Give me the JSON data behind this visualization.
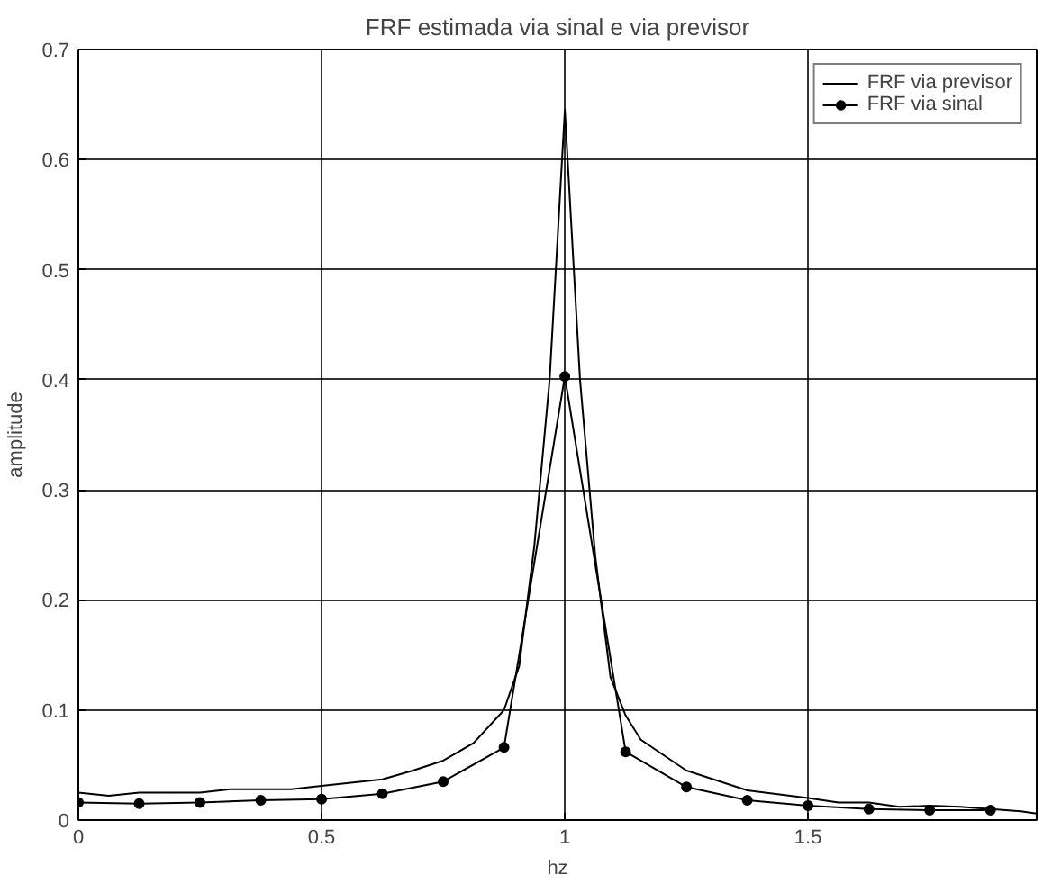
{
  "chart_data": {
    "type": "line",
    "title": "FRF estimada via sinal e via previsor",
    "xlabel": "hz",
    "ylabel": "amplitude",
    "xlim": [
      0,
      1.97
    ],
    "ylim": [
      0,
      0.7
    ],
    "xticks": [
      0,
      0.5,
      1,
      1.5
    ],
    "yticks": [
      0,
      0.1,
      0.2,
      0.3,
      0.4,
      0.5,
      0.6,
      0.7
    ],
    "grid": true,
    "legend": "top right",
    "series": [
      {
        "name": "FRF via previsor",
        "color": "#000000",
        "marker": "none",
        "x": [
          0,
          0.0625,
          0.125,
          0.25,
          0.3125,
          0.4375,
          0.5,
          0.625,
          0.6875,
          0.75,
          0.8125,
          0.875,
          0.90625,
          0.9375,
          0.96875,
          1,
          1.03125,
          1.0625,
          1.09375,
          1.125,
          1.15625,
          1.25,
          1.375,
          1.5,
          1.5625,
          1.625,
          1.6875,
          1.75,
          1.8125,
          1.875,
          1.9375,
          1.97
        ],
        "values": [
          0.025,
          0.022,
          0.025,
          0.025,
          0.028,
          0.028,
          0.031,
          0.037,
          0.045,
          0.054,
          0.07,
          0.1,
          0.14,
          0.25,
          0.4,
          0.645,
          0.4,
          0.24,
          0.13,
          0.095,
          0.073,
          0.045,
          0.027,
          0.02,
          0.016,
          0.016,
          0.012,
          0.013,
          0.012,
          0.01,
          0.008,
          0.006
        ]
      },
      {
        "name": "FRF via sinal",
        "color": "#000000",
        "marker": "circle",
        "x": [
          0,
          0.125,
          0.25,
          0.375,
          0.5,
          0.625,
          0.75,
          0.875,
          1,
          1.125,
          1.25,
          1.375,
          1.5,
          1.625,
          1.75,
          1.875
        ],
        "values": [
          0.016,
          0.015,
          0.016,
          0.018,
          0.019,
          0.024,
          0.035,
          0.066,
          0.403,
          0.062,
          0.03,
          0.018,
          0.013,
          0.01,
          0.009,
          0.009
        ]
      }
    ]
  }
}
